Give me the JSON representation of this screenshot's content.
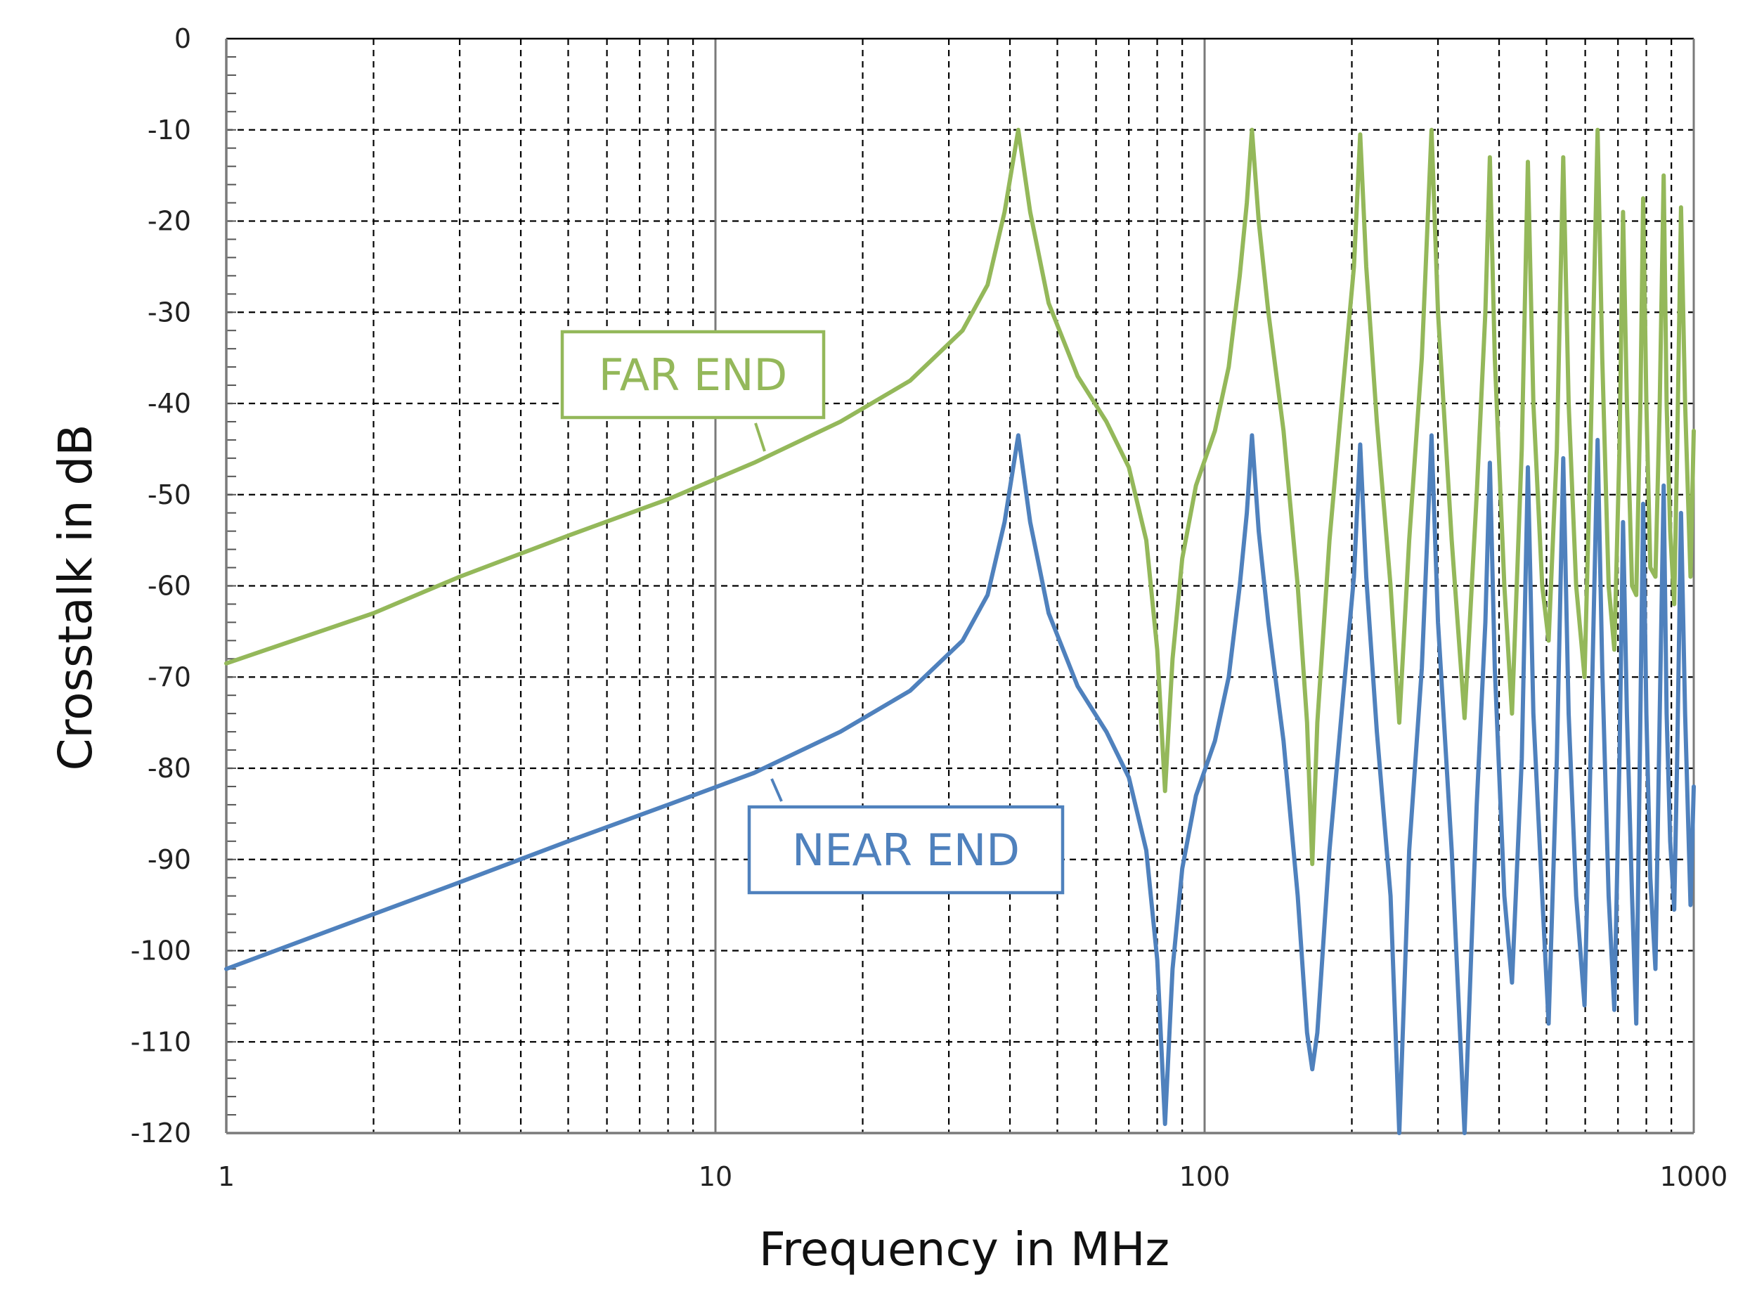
{
  "chart_data": {
    "type": "line",
    "title": "",
    "xlabel": "Frequency in MHz",
    "ylabel": "Crosstalk in dB",
    "xscale": "log",
    "xlim": [
      1,
      1000
    ],
    "ylim": [
      -120,
      0
    ],
    "grid": true,
    "x_ticks": [
      "1",
      "10",
      "100",
      "1000"
    ],
    "y_ticks": [
      "0",
      "-10",
      "-20",
      "-30",
      "-40",
      "-50",
      "-60",
      "-70",
      "-80",
      "-90",
      "-100",
      "-110",
      "-120"
    ],
    "series": [
      {
        "name": "FAR END",
        "color": "#94b85a",
        "points": [
          [
            1,
            -68.5
          ],
          [
            2,
            -63
          ],
          [
            3,
            -59
          ],
          [
            5,
            -54.5
          ],
          [
            8,
            -50.5
          ],
          [
            12,
            -46.5
          ],
          [
            18,
            -42
          ],
          [
            25,
            -37.5
          ],
          [
            32,
            -32
          ],
          [
            36,
            -27
          ],
          [
            39,
            -19
          ],
          [
            41.6,
            -10
          ],
          [
            44,
            -19
          ],
          [
            48,
            -29
          ],
          [
            55,
            -37
          ],
          [
            63,
            -42
          ],
          [
            70,
            -47
          ],
          [
            76,
            -55
          ],
          [
            80,
            -67
          ],
          [
            83,
            -82.5
          ],
          [
            86,
            -68
          ],
          [
            90,
            -57
          ],
          [
            96,
            -49
          ],
          [
            105,
            -43
          ],
          [
            112,
            -36
          ],
          [
            118,
            -26
          ],
          [
            122,
            -18
          ],
          [
            125,
            -10
          ],
          [
            129,
            -20
          ],
          [
            135,
            -30
          ],
          [
            145,
            -43
          ],
          [
            155,
            -60
          ],
          [
            162,
            -75
          ],
          [
            166,
            -90.5
          ],
          [
            170,
            -75
          ],
          [
            180,
            -55
          ],
          [
            192,
            -38
          ],
          [
            202,
            -25
          ],
          [
            208,
            -10.5
          ],
          [
            214,
            -25
          ],
          [
            225,
            -42
          ],
          [
            240,
            -60
          ],
          [
            250,
            -75
          ],
          [
            262,
            -55
          ],
          [
            278,
            -35
          ],
          [
            291,
            -10
          ],
          [
            300,
            -30
          ],
          [
            320,
            -55
          ],
          [
            340,
            -74.5
          ],
          [
            360,
            -50
          ],
          [
            375,
            -30
          ],
          [
            383,
            -13
          ],
          [
            392,
            -35
          ],
          [
            410,
            -60
          ],
          [
            425,
            -74
          ],
          [
            445,
            -45
          ],
          [
            458,
            -13.5
          ],
          [
            470,
            -40
          ],
          [
            490,
            -60
          ],
          [
            505,
            -66
          ],
          [
            525,
            -45
          ],
          [
            541,
            -13
          ],
          [
            555,
            -40
          ],
          [
            575,
            -60
          ],
          [
            598,
            -70
          ],
          [
            615,
            -45
          ],
          [
            636,
            -10
          ],
          [
            650,
            -35
          ],
          [
            670,
            -60
          ],
          [
            688,
            -67
          ],
          [
            705,
            -45
          ],
          [
            717,
            -19
          ],
          [
            730,
            -40
          ],
          [
            748,
            -60
          ],
          [
            763,
            -61
          ],
          [
            778,
            -40
          ],
          [
            788,
            -17.5
          ],
          [
            800,
            -40
          ],
          [
            815,
            -58
          ],
          [
            835,
            -59
          ],
          [
            852,
            -40
          ],
          [
            868,
            -15
          ],
          [
            880,
            -40
          ],
          [
            895,
            -54
          ],
          [
            912,
            -62
          ],
          [
            925,
            -45
          ],
          [
            942,
            -18.5
          ],
          [
            960,
            -40
          ],
          [
            985,
            -59
          ],
          [
            1000,
            -43
          ]
        ]
      },
      {
        "name": "NEAR END",
        "color": "#4f81bd",
        "points": [
          [
            1,
            -102
          ],
          [
            2,
            -96
          ],
          [
            3,
            -92.5
          ],
          [
            5,
            -88
          ],
          [
            8,
            -84
          ],
          [
            12,
            -80.5
          ],
          [
            18,
            -76
          ],
          [
            25,
            -71.5
          ],
          [
            32,
            -66
          ],
          [
            36,
            -61
          ],
          [
            39,
            -53
          ],
          [
            41.6,
            -43.5
          ],
          [
            44,
            -53
          ],
          [
            48,
            -63
          ],
          [
            55,
            -71
          ],
          [
            63,
            -76
          ],
          [
            70,
            -81
          ],
          [
            76,
            -89
          ],
          [
            80,
            -101
          ],
          [
            83,
            -119
          ],
          [
            86,
            -102
          ],
          [
            90,
            -91
          ],
          [
            96,
            -83
          ],
          [
            105,
            -77
          ],
          [
            112,
            -70
          ],
          [
            118,
            -60
          ],
          [
            122,
            -52
          ],
          [
            125,
            -43.5
          ],
          [
            129,
            -54
          ],
          [
            135,
            -64
          ],
          [
            145,
            -77
          ],
          [
            155,
            -94
          ],
          [
            162,
            -109
          ],
          [
            166,
            -113
          ],
          [
            170,
            -109
          ],
          [
            180,
            -89
          ],
          [
            192,
            -72
          ],
          [
            202,
            -59
          ],
          [
            208,
            -44.5
          ],
          [
            214,
            -59
          ],
          [
            225,
            -76
          ],
          [
            240,
            -94
          ],
          [
            250,
            -120
          ],
          [
            262,
            -89
          ],
          [
            278,
            -69
          ],
          [
            291,
            -43.5
          ],
          [
            300,
            -64
          ],
          [
            320,
            -89
          ],
          [
            340,
            -120
          ],
          [
            360,
            -84
          ],
          [
            375,
            -64
          ],
          [
            383,
            -46.5
          ],
          [
            392,
            -69
          ],
          [
            410,
            -94
          ],
          [
            425,
            -103.5
          ],
          [
            445,
            -79
          ],
          [
            458,
            -47
          ],
          [
            470,
            -74
          ],
          [
            490,
            -94
          ],
          [
            505,
            -108
          ],
          [
            525,
            -79
          ],
          [
            541,
            -46
          ],
          [
            555,
            -74
          ],
          [
            575,
            -94
          ],
          [
            598,
            -106
          ],
          [
            615,
            -79
          ],
          [
            636,
            -44
          ],
          [
            650,
            -69
          ],
          [
            670,
            -94
          ],
          [
            688,
            -106.5
          ],
          [
            705,
            -79
          ],
          [
            717,
            -53
          ],
          [
            730,
            -74
          ],
          [
            748,
            -94
          ],
          [
            763,
            -108
          ],
          [
            778,
            -74
          ],
          [
            788,
            -51
          ],
          [
            800,
            -74
          ],
          [
            815,
            -92
          ],
          [
            835,
            -102
          ],
          [
            852,
            -74
          ],
          [
            868,
            -49
          ],
          [
            880,
            -74
          ],
          [
            895,
            -88
          ],
          [
            912,
            -95.5
          ],
          [
            925,
            -79
          ],
          [
            942,
            -52
          ],
          [
            960,
            -74
          ],
          [
            985,
            -95
          ],
          [
            1000,
            -82
          ]
        ]
      }
    ],
    "annotations": [
      {
        "text": "FAR END",
        "series": "FAR END"
      },
      {
        "text": "NEAR END",
        "series": "NEAR END"
      }
    ]
  }
}
